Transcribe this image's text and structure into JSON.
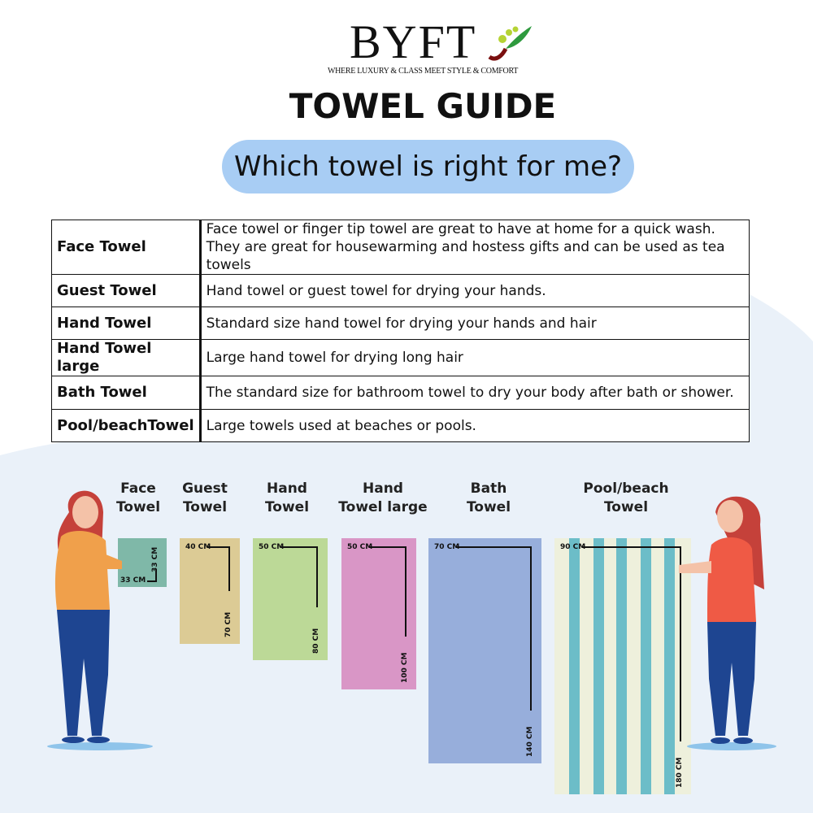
{
  "brand": {
    "logo": "BYFT",
    "tagline": "WHERE LUXURY & CLASS MEET STYLE & COMFORT"
  },
  "title": "TOWEL GUIDE",
  "subtitle": "Which towel is right for me?",
  "table": [
    {
      "name": "Face Towel",
      "desc": "Face towel or finger tip towel are great to have at home for a quick wash.",
      "desc2": "They are great for housewarming and hostess gifts and can be used as tea towels"
    },
    {
      "name": "Guest Towel",
      "desc": "Hand towel or guest towel for drying your hands."
    },
    {
      "name": "Hand Towel",
      "desc": "Standard size hand towel for drying your hands and hair"
    },
    {
      "name": "Hand Towel large",
      "desc": "Large hand towel for drying long hair"
    },
    {
      "name": "Bath Towel",
      "desc": "The standard size for bathroom towel to dry your body after bath or shower."
    },
    {
      "name": "Pool/beachTowel",
      "desc": "Large towels used at beaches or pools."
    }
  ],
  "towels": [
    {
      "l1": "Face",
      "l2": "Towel",
      "w": "33 CM",
      "h": "33 CM",
      "color": "#7fb8a8"
    },
    {
      "l1": "Guest",
      "l2": "Towel",
      "w": "40 CM",
      "h": "70 CM",
      "color": "#dccb95"
    },
    {
      "l1": "Hand",
      "l2": "Towel",
      "w": "50 CM",
      "h": "80 CM",
      "color": "#bcd997"
    },
    {
      "l1": "Hand",
      "l2": "Towel large",
      "w": "50 CM",
      "h": "100 CM",
      "color": "#d996c6"
    },
    {
      "l1": "Bath",
      "l2": "Towel",
      "w": "70 CM",
      "h": "140 CM",
      "color": "#97aedb"
    },
    {
      "l1": "Pool/beach",
      "l2": "Towel",
      "w": "90 CM",
      "h": "180 CM",
      "color": "#eef0dc",
      "stripe": "#6cbdc8"
    }
  ]
}
